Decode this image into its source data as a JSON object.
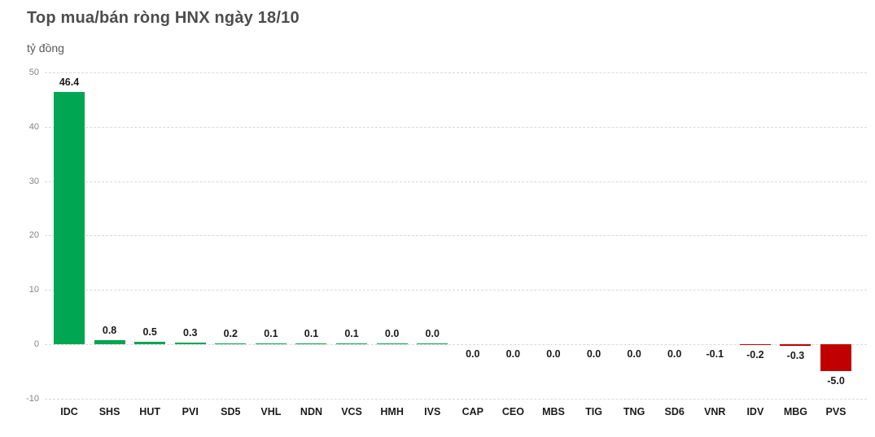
{
  "header": {
    "title": "Top mua/bán ròng HNX ngày 18/10",
    "unit_label": "tỷ đồng"
  },
  "colors": {
    "positive_bar": "#00A651",
    "negative_bar": "#C00000",
    "title_text": "#4d4d4d",
    "axis_text": "#848484",
    "gridline": "#d9d9d9",
    "value_text": "#1a1a1a"
  },
  "chart_data": {
    "type": "bar",
    "title": "Top mua/bán ròng HNX ngày 18/10",
    "ylabel": "tỷ đồng",
    "xlabel": "",
    "ylim": [
      -10,
      50
    ],
    "yticks": [
      50,
      40,
      30,
      20,
      10,
      0,
      -10
    ],
    "grid": true,
    "legend": false,
    "categories": [
      "IDC",
      "SHS",
      "HUT",
      "PVI",
      "SD5",
      "VHL",
      "NDN",
      "VCS",
      "HMH",
      "IVS",
      "CAP",
      "CEO",
      "MBS",
      "TIG",
      "TNG",
      "SD6",
      "VNR",
      "IDV",
      "MBG",
      "PVS"
    ],
    "values": [
      46.4,
      0.8,
      0.5,
      0.3,
      0.2,
      0.1,
      0.1,
      0.1,
      0.0,
      0.0,
      0.0,
      0.0,
      0.0,
      0.0,
      0.0,
      0.0,
      -0.1,
      -0.2,
      -0.3,
      -5.0
    ],
    "value_labels": [
      "46.4",
      "0.8",
      "0.5",
      "0.3",
      "0.2",
      "0.1",
      "0.1",
      "0.1",
      "0.0",
      "0.0",
      "0.0",
      "0.0",
      "0.0",
      "0.0",
      "0.0",
      "0.0",
      "-0.1",
      "-0.2",
      "-0.3",
      "-5.0"
    ],
    "label_side": [
      "above",
      "above",
      "above",
      "above",
      "above",
      "above",
      "above",
      "above",
      "above",
      "above",
      "below",
      "below",
      "below",
      "below",
      "below",
      "below",
      "below",
      "below",
      "below",
      "below"
    ]
  }
}
